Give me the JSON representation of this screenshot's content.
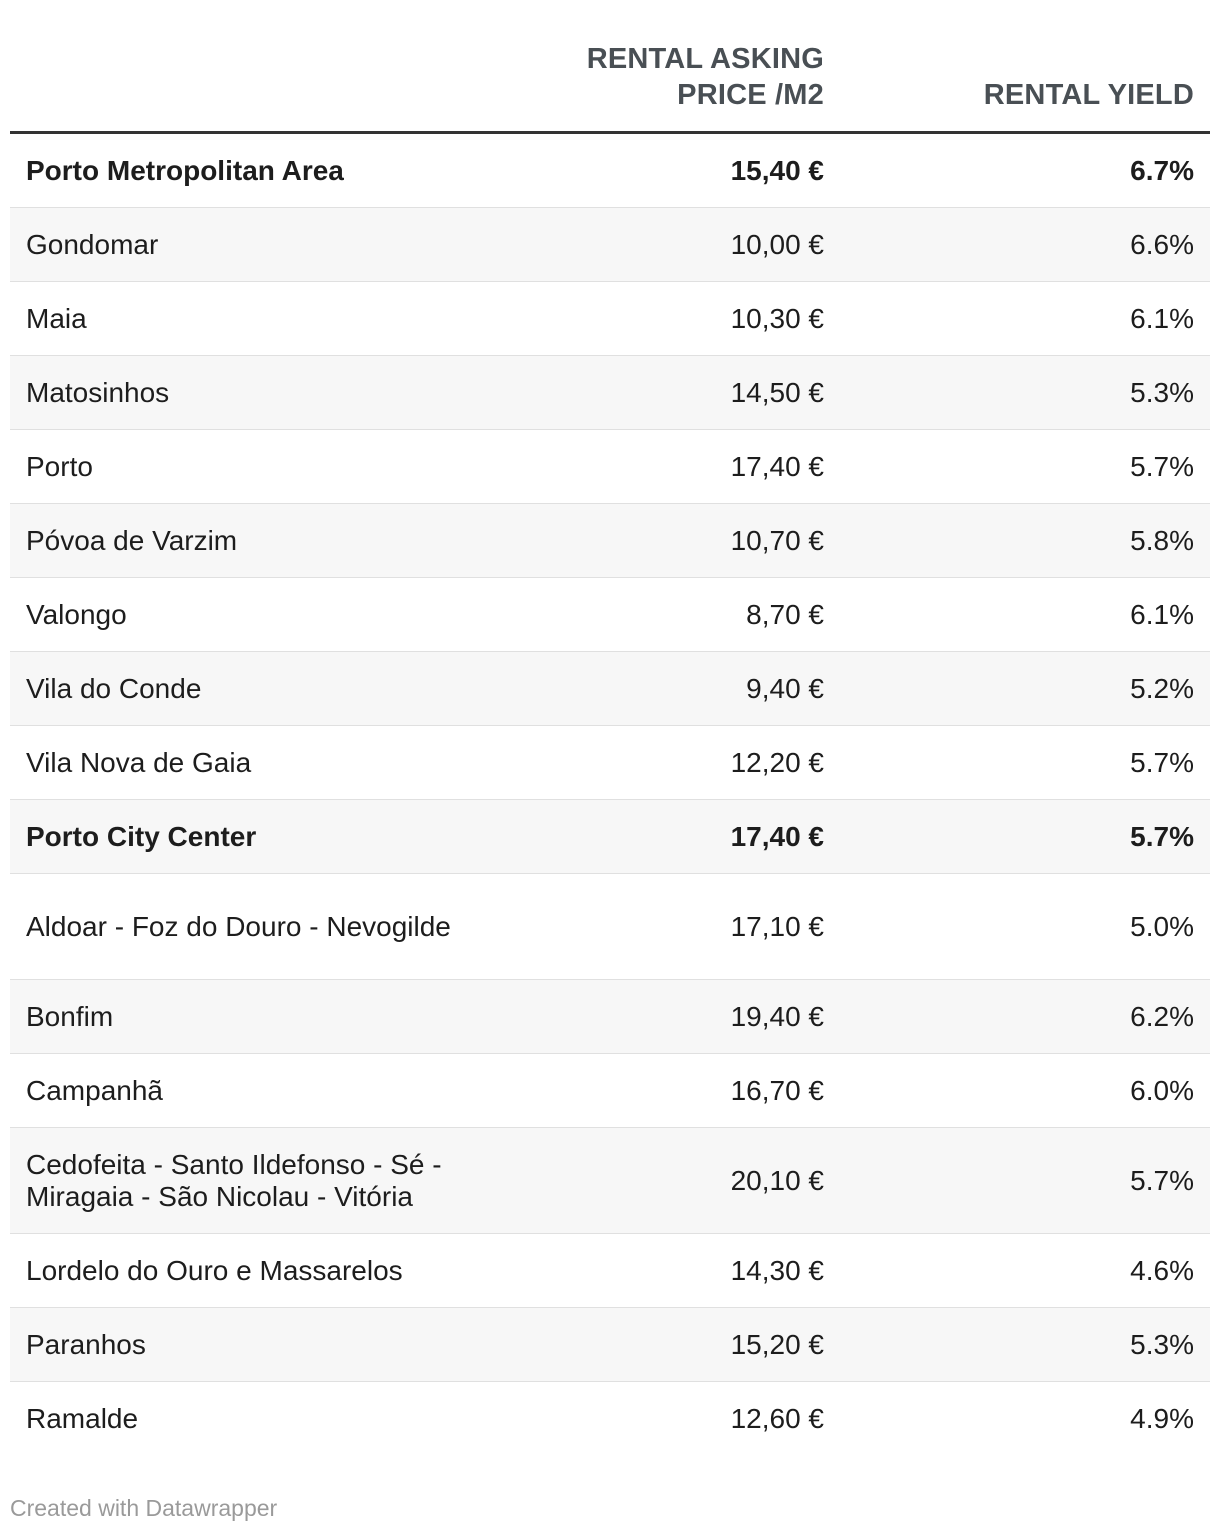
{
  "chart_data": {
    "type": "table",
    "columns": [
      "",
      "RENTAL ASKING PRICE /M2",
      "RENTAL YIELD"
    ],
    "header": {
      "price_line1": "RENTAL ASKING",
      "price_line2": "PRICE /M2",
      "yield": "RENTAL YIELD"
    },
    "rows": [
      {
        "name": "Porto Metropolitan Area",
        "price": "15,40 €",
        "yield": "6.7%",
        "bold": true
      },
      {
        "name": "Gondomar",
        "price": "10,00 €",
        "yield": "6.6%",
        "bold": false
      },
      {
        "name": "Maia",
        "price": "10,30 €",
        "yield": "6.1%",
        "bold": false
      },
      {
        "name": "Matosinhos",
        "price": "14,50 €",
        "yield": "5.3%",
        "bold": false
      },
      {
        "name": "Porto",
        "price": "17,40 €",
        "yield": "5.7%",
        "bold": false
      },
      {
        "name": "Póvoa de Varzim",
        "price": "10,70 €",
        "yield": "5.8%",
        "bold": false
      },
      {
        "name": "Valongo",
        "price": "8,70 €",
        "yield": "6.1%",
        "bold": false
      },
      {
        "name": "Vila do Conde",
        "price": "9,40 €",
        "yield": "5.2%",
        "bold": false
      },
      {
        "name": "Vila Nova de Gaia",
        "price": "12,20 €",
        "yield": "5.7%",
        "bold": false
      },
      {
        "name": "Porto City Center",
        "price": "17,40 €",
        "yield": "5.7%",
        "bold": true
      },
      {
        "name": "Aldoar - Foz do Douro - Nevogilde",
        "price": "17,10 €",
        "yield": "5.0%",
        "bold": false
      },
      {
        "name": "Bonfim",
        "price": "19,40 €",
        "yield": "6.2%",
        "bold": false
      },
      {
        "name": "Campanhã",
        "price": "16,70 €",
        "yield": "6.0%",
        "bold": false
      },
      {
        "name": "Cedofeita - Santo Ildefonso - Sé - Miragaia - São Nicolau - Vitória",
        "price": "20,10 €",
        "yield": "5.7%",
        "bold": false
      },
      {
        "name": "Lordelo do Ouro e Massarelos",
        "price": "14,30 €",
        "yield": "4.6%",
        "bold": false
      },
      {
        "name": "Paranhos",
        "price": "15,20 €",
        "yield": "5.3%",
        "bold": false
      },
      {
        "name": "Ramalde",
        "price": "12,60 €",
        "yield": "4.9%",
        "bold": false
      }
    ]
  },
  "footer": "Created with Datawrapper",
  "colors": {
    "header_text": "#494f54",
    "header_rule": "#333333",
    "row_alt_bg": "#f7f7f7",
    "row_border": "#e0e0e0",
    "footer_text": "#9a9a9a"
  }
}
